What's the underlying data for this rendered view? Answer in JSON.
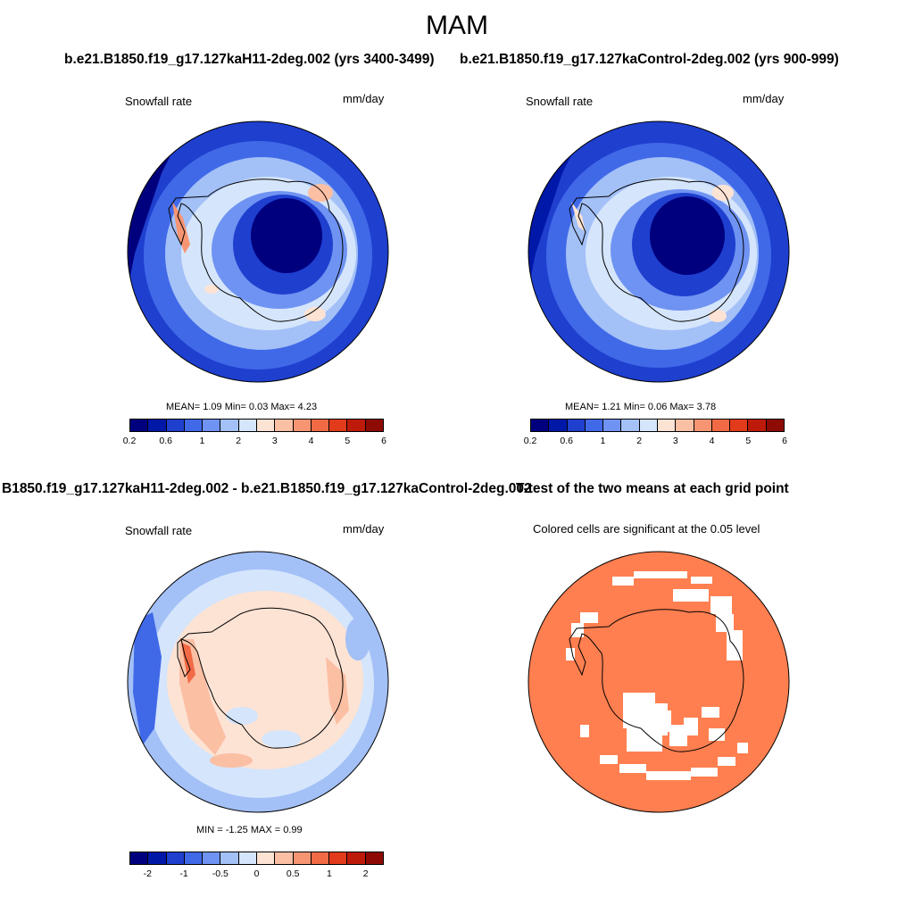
{
  "figure": {
    "title": "MAM"
  },
  "panels": {
    "p1": {
      "heading": "b.e21.B1850.f19_g17.127kaH11-2deg.002 (yrs 3400-3499)",
      "left_label": "Snowfall rate",
      "right_label": "mm/day",
      "stats": "MEAN=   1.09  Min=   0.03  Max=   4.23",
      "ticks": [
        "0.2",
        "0.6",
        "1",
        "2",
        "3",
        "4",
        "5",
        "6"
      ]
    },
    "p2": {
      "heading": "b.e21.B1850.f19_g17.127kaControl-2deg.002 (yrs 900-999)",
      "left_label": "Snowfall rate",
      "right_label": "mm/day",
      "stats": "MEAN=   1.21  Min=   0.06  Max=   3.78",
      "ticks": [
        "0.2",
        "0.6",
        "1",
        "2",
        "3",
        "4",
        "5",
        "6"
      ]
    },
    "p3": {
      "heading": "B1850.f19_g17.127kaH11-2deg.002 - b.e21.B1850.f19_g17.127kaControl-2deg.002",
      "left_label": "Snowfall rate",
      "right_label": "mm/day",
      "stats": "MIN =  -1.25 MAX =   0.99",
      "ticks": [
        "-2",
        "-1",
        "-0.5",
        "0",
        "0.5",
        "1",
        "2"
      ]
    },
    "p4": {
      "heading": "T-test of the two means at each grid point",
      "subtitle": "Colored cells are significant at the 0.05 level"
    }
  },
  "colors": {
    "abs_scale": [
      "#00007f",
      "#0018a8",
      "#1f3fcf",
      "#4069e8",
      "#6f93f2",
      "#a3c0f7",
      "#d5e5fb",
      "#fde3d4",
      "#fbbfa4",
      "#f79572",
      "#f26a45",
      "#e23b1b",
      "#be1a0a",
      "#8e0b05"
    ],
    "diff_scale": [
      "#00007f",
      "#0018a8",
      "#1f3fcf",
      "#4069e8",
      "#6f93f2",
      "#a3c0f7",
      "#d5e5fb",
      "#fde3d4",
      "#fbbfa4",
      "#f79572",
      "#f26a45",
      "#e23b1b",
      "#be1a0a",
      "#8e0b05"
    ],
    "significant": "#ff7f50"
  }
}
